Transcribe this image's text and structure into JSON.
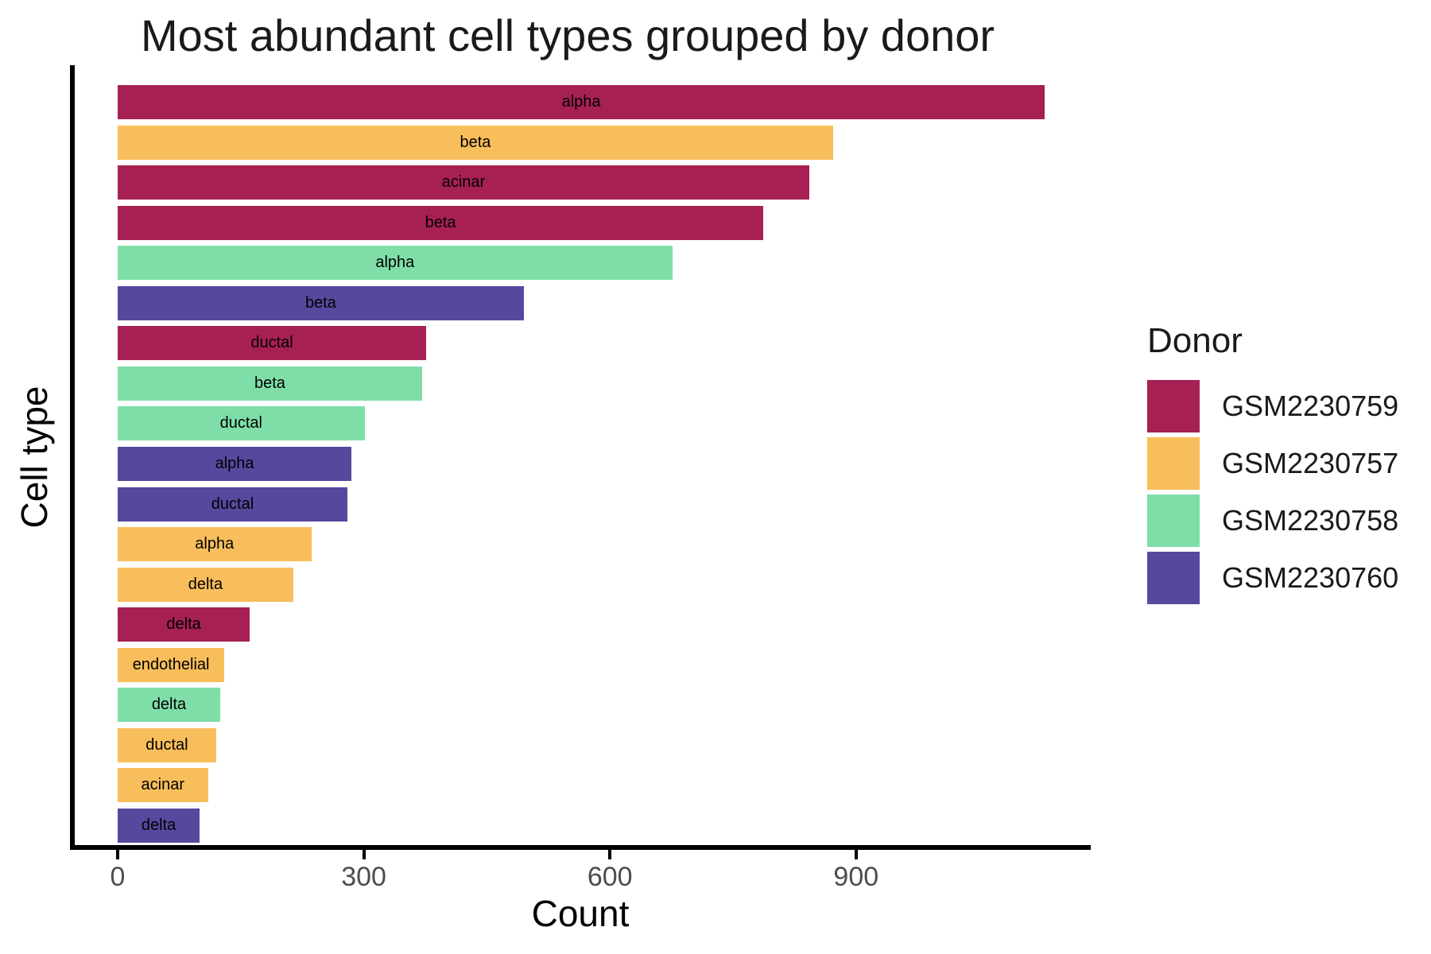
{
  "chart_data": {
    "type": "bar",
    "orientation": "horizontal",
    "title": "Most abundant cell types grouped by donor",
    "xlabel": "Count",
    "ylabel": "Cell type",
    "xlim": [
      0,
      1186
    ],
    "x_ticks": [
      0,
      300,
      600,
      900
    ],
    "grid": false,
    "bar_text_labels": "cell type name centered inside each bar",
    "bars": [
      {
        "cell_type": "alpha",
        "donor": "GSM2230759",
        "count": 1130
      },
      {
        "cell_type": "beta",
        "donor": "GSM2230757",
        "count": 872
      },
      {
        "cell_type": "acinar",
        "donor": "GSM2230759",
        "count": 843
      },
      {
        "cell_type": "beta",
        "donor": "GSM2230759",
        "count": 787
      },
      {
        "cell_type": "alpha",
        "donor": "GSM2230758",
        "count": 676
      },
      {
        "cell_type": "beta",
        "donor": "GSM2230760",
        "count": 495
      },
      {
        "cell_type": "ductal",
        "donor": "GSM2230759",
        "count": 376
      },
      {
        "cell_type": "beta",
        "donor": "GSM2230758",
        "count": 371
      },
      {
        "cell_type": "ductal",
        "donor": "GSM2230758",
        "count": 301
      },
      {
        "cell_type": "alpha",
        "donor": "GSM2230760",
        "count": 285
      },
      {
        "cell_type": "ductal",
        "donor": "GSM2230760",
        "count": 280
      },
      {
        "cell_type": "alpha",
        "donor": "GSM2230757",
        "count": 236
      },
      {
        "cell_type": "delta",
        "donor": "GSM2230757",
        "count": 214
      },
      {
        "cell_type": "delta",
        "donor": "GSM2230759",
        "count": 161
      },
      {
        "cell_type": "endothelial",
        "donor": "GSM2230757",
        "count": 130
      },
      {
        "cell_type": "delta",
        "donor": "GSM2230758",
        "count": 125
      },
      {
        "cell_type": "ductal",
        "donor": "GSM2230757",
        "count": 120
      },
      {
        "cell_type": "acinar",
        "donor": "GSM2230757",
        "count": 110
      },
      {
        "cell_type": "delta",
        "donor": "GSM2230760",
        "count": 100
      }
    ],
    "legend": {
      "title": "Donor",
      "position": "right",
      "entries": [
        {
          "label": "GSM2230759",
          "color": "#A62053"
        },
        {
          "label": "GSM2230757",
          "color": "#F8BE5B"
        },
        {
          "label": "GSM2230758",
          "color": "#7FDEA8"
        },
        {
          "label": "GSM2230760",
          "color": "#57489E"
        }
      ]
    },
    "colors": {
      "axis_line": "#000000",
      "tick_label": "#4D4D4D",
      "text": "#1A1A1A",
      "background": "#FFFFFF"
    }
  }
}
